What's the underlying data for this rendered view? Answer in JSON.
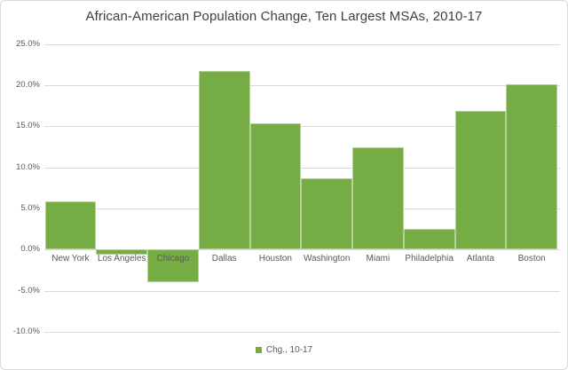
{
  "chart_data": {
    "type": "bar",
    "title": "African-American Population Change, Ten Largest MSAs, 2010-17",
    "categories": [
      "New York",
      "Los Angeles",
      "Chicago",
      "Dallas",
      "Houston",
      "Washington",
      "Miami",
      "Philadelphia",
      "Atlanta",
      "Boston"
    ],
    "series": [
      {
        "name": "Chg., 10-17",
        "values": [
          5.9,
          -0.6,
          -4.0,
          21.7,
          15.4,
          8.7,
          12.4,
          2.5,
          16.9,
          20.1
        ]
      }
    ],
    "xlabel": "",
    "ylabel": "",
    "ylim": [
      -10,
      25
    ],
    "ytick_step": 5,
    "yticks": [
      "25.0%",
      "20.0%",
      "15.0%",
      "10.0%",
      "5.0%",
      "0.0%",
      "-5.0%",
      "-10.0%"
    ],
    "grid": true,
    "legend_position": "bottom",
    "colors": {
      "bar": "#76AC44",
      "gridline": "#D9D9D9",
      "title_text": "#3F3F3F",
      "axis_text": "#595959",
      "background": "#FFFFFF",
      "border": "#D9D9D9"
    }
  }
}
